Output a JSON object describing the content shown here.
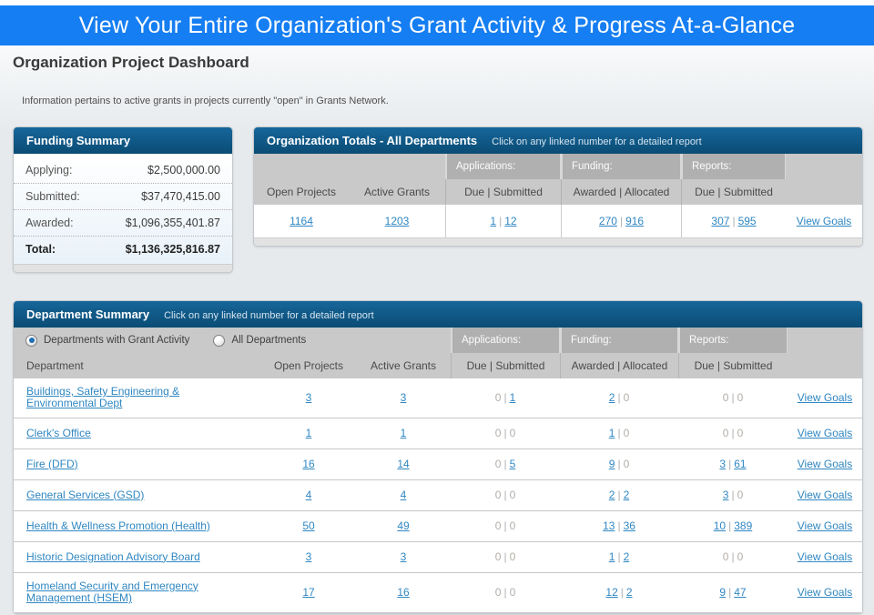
{
  "separator": "|",
  "banner": {
    "title": "View Your Entire Organization's Grant Activity & Progress At-a-Glance"
  },
  "page": {
    "title": "Organization Project Dashboard",
    "note": "Information pertains to active grants in projects currently \"open\" in Grants Network."
  },
  "funding_summary": {
    "title": "Funding Summary",
    "rows": [
      {
        "label": "Applying:",
        "value": "$2,500,000.00"
      },
      {
        "label": "Submitted:",
        "value": "$37,470,415.00"
      },
      {
        "label": "Awarded:",
        "value": "$1,096,355,401.87"
      },
      {
        "label": "Total:",
        "value": "$1,136,325,816.87"
      }
    ]
  },
  "org_totals": {
    "title": "Organization Totals - All Departments",
    "subtitle": "Click on any linked number for a detailed report",
    "group_headers": {
      "applications": "Applications:",
      "funding": "Funding:",
      "reports": "Reports:"
    },
    "columns": {
      "open_projects": "Open Projects",
      "active_grants": "Active Grants",
      "apps_due_submitted": "Due | Submitted",
      "funding_awarded_allocated": "Awarded | Allocated",
      "reports_due_submitted": "Due | Submitted"
    },
    "row": {
      "open_projects": "1164",
      "active_grants": "1203",
      "apps_due": "1",
      "apps_submitted": "12",
      "funding_awarded": "270",
      "funding_allocated": "916",
      "reports_due": "307",
      "reports_submitted": "595",
      "view_goals": "View Goals"
    }
  },
  "department_summary": {
    "title": "Department Summary",
    "subtitle": "Click on any linked number for a detailed report",
    "filters": [
      {
        "label": "Departments with Grant Activity",
        "selected": true
      },
      {
        "label": "All Departments",
        "selected": false
      }
    ],
    "group_headers": {
      "applications": "Applications:",
      "funding": "Funding:",
      "reports": "Reports:"
    },
    "columns": {
      "department": "Department",
      "open_projects": "Open Projects",
      "active_grants": "Active Grants",
      "apps_due_submitted": "Due | Submitted",
      "funding_awarded_allocated": "Awarded | Allocated",
      "reports_due_submitted": "Due | Submitted"
    },
    "view_goals_label": "View Goals",
    "rows": [
      {
        "department": "Buildings, Safety Engineering & Environmental Dept",
        "open_projects": "3",
        "active_grants": "3",
        "apps": {
          "due": "0",
          "due_link": false,
          "sub": "1",
          "sub_link": true
        },
        "funding": {
          "awarded": "2",
          "awarded_link": true,
          "allocated": "0",
          "allocated_link": false
        },
        "reports": {
          "due": "0",
          "due_link": false,
          "sub": "0",
          "sub_link": false
        }
      },
      {
        "department": "Clerk's Office",
        "open_projects": "1",
        "active_grants": "1",
        "apps": {
          "due": "0",
          "due_link": false,
          "sub": "0",
          "sub_link": false
        },
        "funding": {
          "awarded": "1",
          "awarded_link": true,
          "allocated": "0",
          "allocated_link": false
        },
        "reports": {
          "due": "0",
          "due_link": false,
          "sub": "0",
          "sub_link": false
        }
      },
      {
        "department": "Fire (DFD)",
        "open_projects": "16",
        "active_grants": "14",
        "apps": {
          "due": "0",
          "due_link": false,
          "sub": "5",
          "sub_link": true
        },
        "funding": {
          "awarded": "9",
          "awarded_link": true,
          "allocated": "0",
          "allocated_link": false
        },
        "reports": {
          "due": "3",
          "due_link": true,
          "sub": "61",
          "sub_link": true
        }
      },
      {
        "department": "General Services (GSD)",
        "open_projects": "4",
        "active_grants": "4",
        "apps": {
          "due": "0",
          "due_link": false,
          "sub": "0",
          "sub_link": false
        },
        "funding": {
          "awarded": "2",
          "awarded_link": true,
          "allocated": "2",
          "allocated_link": true
        },
        "reports": {
          "due": "3",
          "due_link": true,
          "sub": "0",
          "sub_link": false
        }
      },
      {
        "department": "Health & Wellness Promotion (Health)",
        "open_projects": "50",
        "active_grants": "49",
        "apps": {
          "due": "0",
          "due_link": false,
          "sub": "0",
          "sub_link": false
        },
        "funding": {
          "awarded": "13",
          "awarded_link": true,
          "allocated": "36",
          "allocated_link": true
        },
        "reports": {
          "due": "10",
          "due_link": true,
          "sub": "389",
          "sub_link": true
        }
      },
      {
        "department": "Historic Designation Advisory Board",
        "open_projects": "3",
        "active_grants": "3",
        "apps": {
          "due": "0",
          "due_link": false,
          "sub": "0",
          "sub_link": false
        },
        "funding": {
          "awarded": "1",
          "awarded_link": true,
          "allocated": "2",
          "allocated_link": true
        },
        "reports": {
          "due": "0",
          "due_link": false,
          "sub": "0",
          "sub_link": false
        }
      },
      {
        "department": "Homeland Security and Emergency Management (HSEM)",
        "open_projects": "17",
        "active_grants": "16",
        "apps": {
          "due": "0",
          "due_link": false,
          "sub": "0",
          "sub_link": false
        },
        "funding": {
          "awarded": "12",
          "awarded_link": true,
          "allocated": "2",
          "allocated_link": true
        },
        "reports": {
          "due": "9",
          "due_link": true,
          "sub": "47",
          "sub_link": true
        }
      }
    ]
  }
}
